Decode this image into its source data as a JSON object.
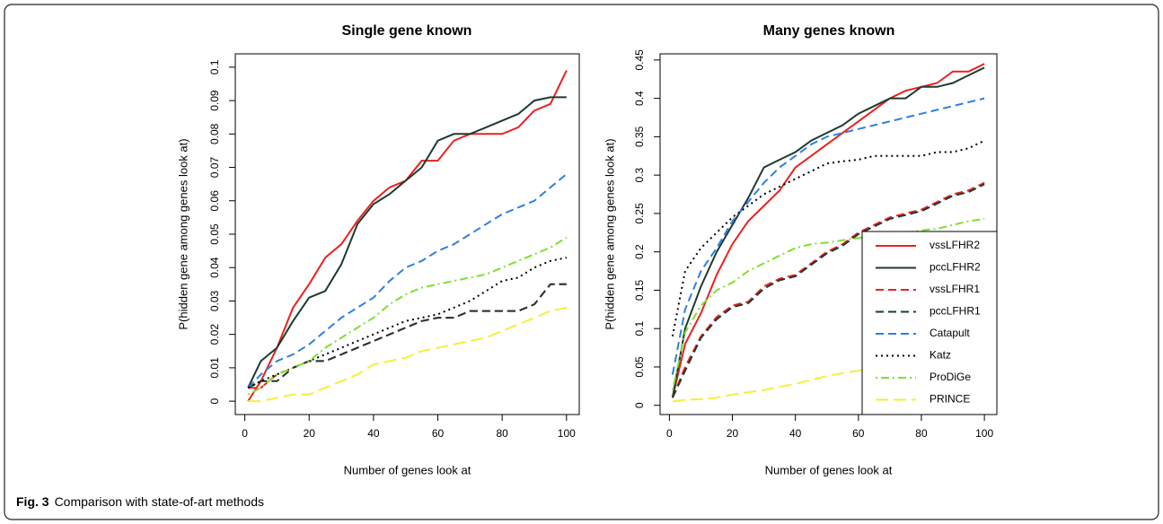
{
  "chart_data": [
    {
      "type": "line",
      "title": "Single gene known",
      "xlabel": "Number of genes look at",
      "ylabel": "P(hidden gene among genes look at)",
      "x": [
        1,
        5,
        10,
        15,
        20,
        25,
        30,
        35,
        40,
        45,
        50,
        55,
        60,
        65,
        70,
        75,
        80,
        85,
        90,
        95,
        100
      ],
      "xlim": [
        -2.96,
        103.96
      ],
      "xticks": [
        0,
        20,
        40,
        60,
        80,
        100
      ],
      "ylim": [
        -0.004,
        0.104
      ],
      "yticks": [
        0,
        0.01,
        0.02,
        0.03,
        0.04,
        0.05,
        0.06,
        0.07,
        0.08,
        0.09,
        0.1
      ],
      "series": [
        {
          "name": "vssLFHR2",
          "color": "#e8221f",
          "dash": "solid",
          "values": [
            0,
            0.006,
            0.016,
            0.028,
            0.035,
            0.043,
            0.047,
            0.054,
            0.06,
            0.064,
            0.066,
            0.072,
            0.072,
            0.078,
            0.08,
            0.08,
            0.08,
            0.082,
            0.087,
            0.089,
            0.099
          ]
        },
        {
          "name": "pccLFHR2",
          "color": "#1d3b2f",
          "dash": "solid",
          "values": [
            0.004,
            0.012,
            0.016,
            0.024,
            0.031,
            0.033,
            0.041,
            0.053,
            0.059,
            0.062,
            0.066,
            0.07,
            0.078,
            0.08,
            0.08,
            0.082,
            0.084,
            0.086,
            0.09,
            0.091,
            0.091
          ]
        },
        {
          "name": "vssLFHR1",
          "color": "#e8221f",
          "dash": "dashed",
          "values": [
            0.004,
            0.004,
            0.008,
            0.01,
            0.012,
            0.012,
            0.014,
            0.016,
            0.018,
            0.02,
            0.022,
            0.024,
            0.025,
            0.025,
            0.027,
            0.027,
            0.027,
            0.027,
            0.029,
            0.035,
            0.035
          ]
        },
        {
          "name": "pccLFHR1",
          "color": "#1d3b2f",
          "dash": "dashed",
          "values": [
            0.004,
            0.006,
            0.006,
            0.01,
            0.012,
            0.012,
            0.014,
            0.016,
            0.018,
            0.02,
            0.022,
            0.024,
            0.025,
            0.025,
            0.027,
            0.027,
            0.027,
            0.027,
            0.029,
            0.035,
            0.035
          ]
        },
        {
          "name": "Catapult",
          "color": "#2f7fe0",
          "dash": "dashed",
          "values": [
            0.004,
            0.008,
            0.012,
            0.014,
            0.017,
            0.021,
            0.025,
            0.028,
            0.031,
            0.036,
            0.04,
            0.042,
            0.045,
            0.047,
            0.05,
            0.053,
            0.056,
            0.058,
            0.06,
            0.064,
            0.068
          ]
        },
        {
          "name": "Katz",
          "color": "#000000",
          "dash": "dotted",
          "values": [
            0.004,
            0.006,
            0.008,
            0.01,
            0.012,
            0.014,
            0.016,
            0.018,
            0.02,
            0.022,
            0.024,
            0.025,
            0.026,
            0.028,
            0.03,
            0.033,
            0.036,
            0.037,
            0.04,
            0.042,
            0.043
          ]
        },
        {
          "name": "ProDiGe",
          "color": "#7fe02f",
          "dash": "dotdash",
          "values": [
            0.002,
            0.004,
            0.008,
            0.01,
            0.012,
            0.016,
            0.019,
            0.022,
            0.025,
            0.029,
            0.032,
            0.034,
            0.035,
            0.036,
            0.037,
            0.038,
            0.04,
            0.042,
            0.044,
            0.046,
            0.049
          ]
        },
        {
          "name": "PRINCE",
          "color": "#f5f03a",
          "dash": "longdash",
          "values": [
            0,
            0,
            0.001,
            0.002,
            0.002,
            0.004,
            0.006,
            0.008,
            0.011,
            0.012,
            0.013,
            0.015,
            0.016,
            0.017,
            0.018,
            0.019,
            0.021,
            0.023,
            0.025,
            0.027,
            0.028
          ]
        }
      ]
    },
    {
      "type": "line",
      "title": "Many genes known",
      "xlabel": "Number of genes look at",
      "ylabel": "P(hidden gene among genes look at)",
      "x": [
        1,
        5,
        10,
        15,
        20,
        25,
        30,
        35,
        40,
        45,
        50,
        55,
        60,
        65,
        70,
        75,
        80,
        85,
        90,
        95,
        100
      ],
      "xlim": [
        -2.96,
        103.96
      ],
      "xticks": [
        0,
        20,
        40,
        60,
        80,
        100
      ],
      "ylim": [
        -0.012,
        0.458
      ],
      "yticks": [
        0,
        0.05,
        0.1,
        0.15,
        0.2,
        0.25,
        0.3,
        0.35,
        0.4,
        0.45
      ],
      "legend": "bottom-right",
      "series": [
        {
          "name": "vssLFHR2",
          "color": "#e8221f",
          "dash": "solid",
          "values": [
            0.01,
            0.08,
            0.12,
            0.17,
            0.21,
            0.24,
            0.26,
            0.28,
            0.31,
            0.325,
            0.34,
            0.355,
            0.37,
            0.385,
            0.4,
            0.41,
            0.415,
            0.42,
            0.435,
            0.435,
            0.445
          ]
        },
        {
          "name": "pccLFHR2",
          "color": "#1d3b2f",
          "dash": "solid",
          "values": [
            0.01,
            0.1,
            0.155,
            0.2,
            0.235,
            0.27,
            0.31,
            0.32,
            0.33,
            0.345,
            0.355,
            0.365,
            0.38,
            0.39,
            0.4,
            0.4,
            0.415,
            0.415,
            0.42,
            0.43,
            0.44
          ]
        },
        {
          "name": "vssLFHR1",
          "color": "#e8221f",
          "dash": "dashed",
          "values": [
            0.01,
            0.05,
            0.09,
            0.115,
            0.13,
            0.135,
            0.155,
            0.165,
            0.17,
            0.185,
            0.2,
            0.21,
            0.225,
            0.235,
            0.245,
            0.25,
            0.255,
            0.265,
            0.275,
            0.28,
            0.29
          ]
        },
        {
          "name": "pccLFHR1",
          "color": "#1d3b2f",
          "dash": "dashed",
          "values": [
            0.01,
            0.045,
            0.088,
            0.112,
            0.128,
            0.133,
            0.152,
            0.163,
            0.168,
            0.183,
            0.198,
            0.208,
            0.223,
            0.233,
            0.243,
            0.248,
            0.253,
            0.263,
            0.273,
            0.278,
            0.288
          ]
        },
        {
          "name": "Catapult",
          "color": "#2f7fe0",
          "dash": "dashed",
          "values": [
            0.04,
            0.125,
            0.175,
            0.205,
            0.24,
            0.265,
            0.29,
            0.31,
            0.325,
            0.34,
            0.35,
            0.355,
            0.36,
            0.365,
            0.37,
            0.375,
            0.38,
            0.385,
            0.39,
            0.395,
            0.4
          ]
        },
        {
          "name": "Katz",
          "color": "#000000",
          "dash": "dotted",
          "values": [
            0.09,
            0.175,
            0.205,
            0.225,
            0.245,
            0.26,
            0.275,
            0.285,
            0.295,
            0.305,
            0.315,
            0.318,
            0.32,
            0.325,
            0.325,
            0.325,
            0.325,
            0.33,
            0.33,
            0.335,
            0.345
          ]
        },
        {
          "name": "ProDiGe",
          "color": "#7fe02f",
          "dash": "dotdash",
          "values": [
            0.02,
            0.095,
            0.13,
            0.15,
            0.16,
            0.175,
            0.185,
            0.195,
            0.205,
            0.21,
            0.212,
            0.215,
            0.218,
            0.22,
            0.222,
            0.225,
            0.228,
            0.23,
            0.235,
            0.24,
            0.243
          ]
        },
        {
          "name": "PRINCE",
          "color": "#f5f03a",
          "dash": "longdash",
          "values": [
            0.005,
            0.007,
            0.008,
            0.01,
            0.014,
            0.017,
            0.02,
            0.024,
            0.028,
            0.033,
            0.038,
            0.042,
            0.045,
            0.05,
            0.055,
            0.06,
            0.065,
            0.07,
            0.075,
            0.078,
            0.08
          ]
        }
      ]
    }
  ],
  "caption": {
    "label": "Fig. 3",
    "text": "Comparison with state-of-art methods"
  }
}
